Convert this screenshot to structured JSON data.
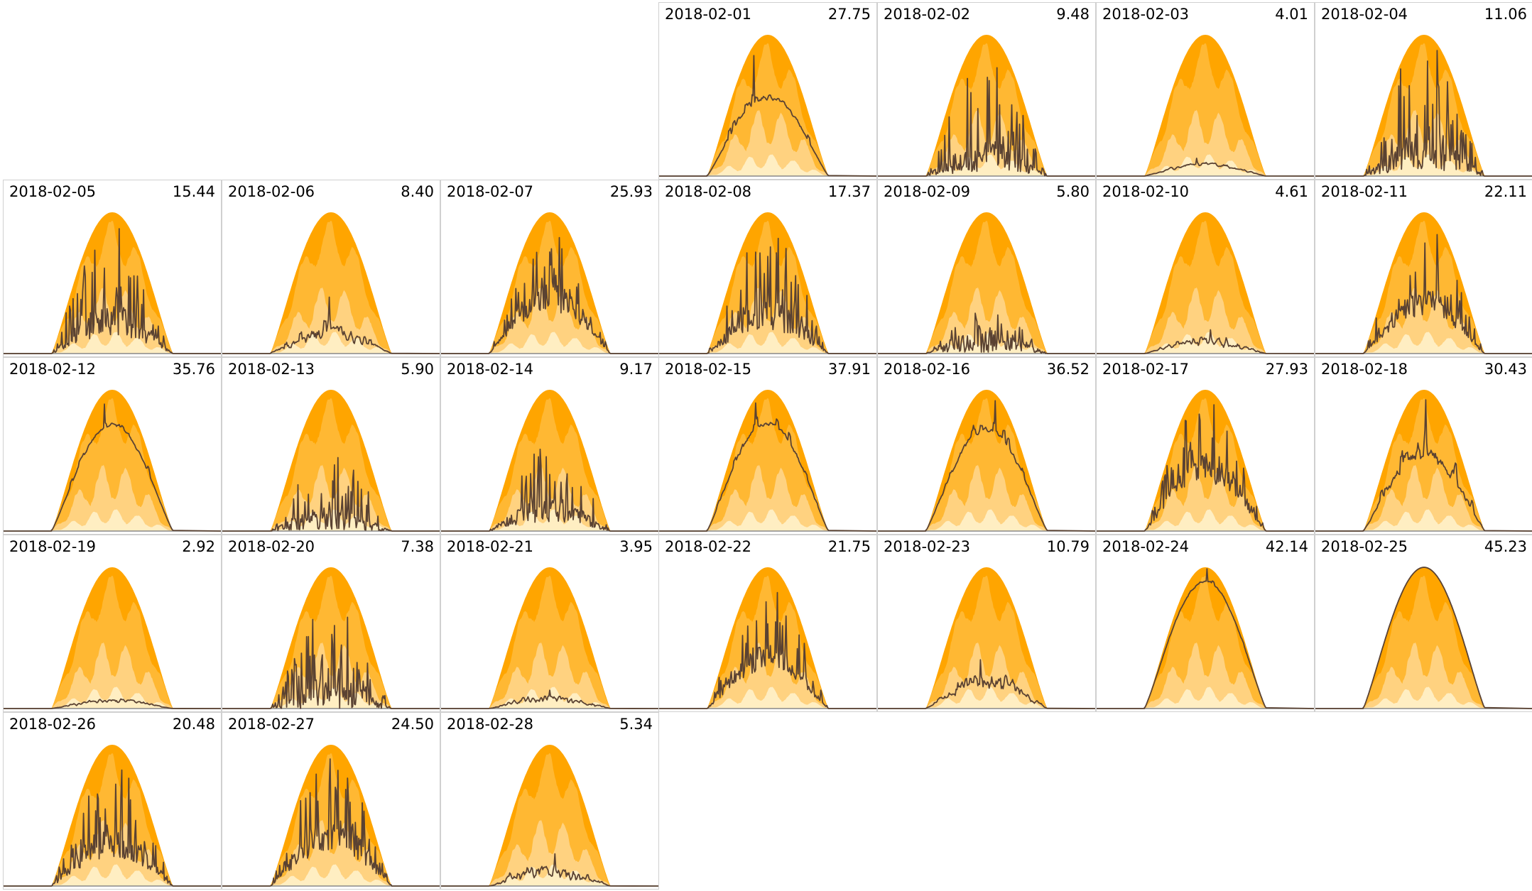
{
  "chart_data": {
    "type": "area",
    "layout": "calendar-month",
    "month": "2018-02",
    "first_weekday_column": 3,
    "colors": {
      "band_max": "#ffa500",
      "band_upper": "#ffb833",
      "band_mid": "#ffd280",
      "band_low": "#ffeec2",
      "actual_line": "#5a4232",
      "baseline": "#888888",
      "cell_border": "#d0d0d0"
    },
    "days": [
      {
        "date": "2018-02-01",
        "total": "27.75",
        "ratio": 0.614,
        "peak": 0.92,
        "variability": 0.25
      },
      {
        "date": "2018-02-02",
        "total": "9.48",
        "ratio": 0.21,
        "peak": 0.8,
        "variability": 0.9
      },
      {
        "date": "2018-02-03",
        "total": "4.01",
        "ratio": 0.089,
        "peak": 0.13,
        "variability": 0.15
      },
      {
        "date": "2018-02-04",
        "total": "11.06",
        "ratio": 0.245,
        "peak": 0.95,
        "variability": 0.95
      },
      {
        "date": "2018-02-05",
        "total": "15.44",
        "ratio": 0.341,
        "peak": 0.9,
        "variability": 0.9
      },
      {
        "date": "2018-02-06",
        "total": "8.40",
        "ratio": 0.186,
        "peak": 0.4,
        "variability": 0.6
      },
      {
        "date": "2018-02-07",
        "total": "25.93",
        "ratio": 0.573,
        "peak": 0.85,
        "variability": 0.85
      },
      {
        "date": "2018-02-08",
        "total": "17.37",
        "ratio": 0.384,
        "peak": 0.85,
        "variability": 0.85
      },
      {
        "date": "2018-02-09",
        "total": "5.80",
        "ratio": 0.128,
        "peak": 0.3,
        "variability": 0.7
      },
      {
        "date": "2018-02-10",
        "total": "4.61",
        "ratio": 0.102,
        "peak": 0.17,
        "variability": 0.35
      },
      {
        "date": "2018-02-11",
        "total": "22.11",
        "ratio": 0.489,
        "peak": 0.9,
        "variability": 0.75
      },
      {
        "date": "2018-02-12",
        "total": "35.76",
        "ratio": 0.791,
        "peak": 0.92,
        "variability": 0.15
      },
      {
        "date": "2018-02-13",
        "total": "5.90",
        "ratio": 0.13,
        "peak": 0.53,
        "variability": 0.7
      },
      {
        "date": "2018-02-14",
        "total": "9.17",
        "ratio": 0.203,
        "peak": 0.6,
        "variability": 0.7
      },
      {
        "date": "2018-02-15",
        "total": "37.91",
        "ratio": 0.838,
        "peak": 0.96,
        "variability": 0.25
      },
      {
        "date": "2018-02-16",
        "total": "36.52",
        "ratio": 0.807,
        "peak": 0.95,
        "variability": 0.3
      },
      {
        "date": "2018-02-17",
        "total": "27.93",
        "ratio": 0.618,
        "peak": 0.92,
        "variability": 0.8
      },
      {
        "date": "2018-02-18",
        "total": "30.43",
        "ratio": 0.673,
        "peak": 0.93,
        "variability": 0.55
      },
      {
        "date": "2018-02-19",
        "total": "2.92",
        "ratio": 0.065,
        "peak": 0.07,
        "variability": 0.2
      },
      {
        "date": "2018-02-20",
        "total": "7.38",
        "ratio": 0.163,
        "peak": 0.72,
        "variability": 0.9
      },
      {
        "date": "2018-02-21",
        "total": "3.95",
        "ratio": 0.087,
        "peak": 0.13,
        "variability": 0.35
      },
      {
        "date": "2018-02-22",
        "total": "21.75",
        "ratio": 0.481,
        "peak": 0.85,
        "variability": 0.7
      },
      {
        "date": "2018-02-23",
        "total": "10.79",
        "ratio": 0.239,
        "peak": 0.35,
        "variability": 0.6
      },
      {
        "date": "2018-02-24",
        "total": "42.14",
        "ratio": 0.932,
        "peak": 0.99,
        "variability": 0.1
      },
      {
        "date": "2018-02-25",
        "total": "45.23",
        "ratio": 1.0,
        "peak": 1.0,
        "variability": 0.0
      },
      {
        "date": "2018-02-26",
        "total": "20.48",
        "ratio": 0.453,
        "peak": 0.85,
        "variability": 0.9
      },
      {
        "date": "2018-02-27",
        "total": "24.50",
        "ratio": 0.542,
        "peak": 0.9,
        "variability": 0.95
      },
      {
        "date": "2018-02-28",
        "total": "5.34",
        "ratio": 0.118,
        "peak": 0.23,
        "variability": 0.6
      }
    ]
  }
}
